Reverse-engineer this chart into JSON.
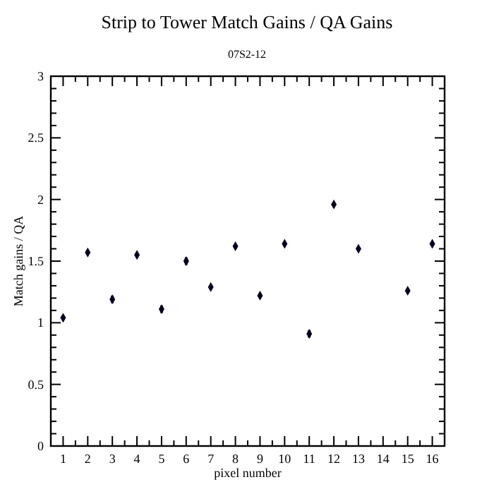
{
  "chart_data": {
    "type": "scatter",
    "title": "Strip to Tower Match Gains / QA Gains",
    "subtitle": "07S2-12",
    "xlabel": "pixel number",
    "ylabel": "Match gains / QA",
    "x": [
      1,
      2,
      3,
      4,
      5,
      6,
      7,
      8,
      9,
      10,
      11,
      12,
      13,
      15,
      16
    ],
    "values": [
      1.04,
      1.57,
      1.19,
      1.55,
      1.11,
      1.5,
      1.29,
      1.62,
      1.22,
      1.64,
      0.91,
      1.96,
      1.6,
      1.26,
      1.64
    ],
    "errors": [
      null,
      null,
      0.03,
      null,
      0.03,
      0.03,
      null,
      null,
      null,
      null,
      0.03,
      null,
      null,
      null,
      null
    ],
    "color": "#000022",
    "marker": "diamond",
    "xlim": [
      0.5,
      16.5
    ],
    "xticks": [
      1,
      2,
      3,
      4,
      5,
      6,
      7,
      8,
      9,
      10,
      11,
      12,
      13,
      14,
      15,
      16
    ],
    "ylim": [
      0,
      3
    ],
    "yticks": [
      0,
      0.5,
      1,
      1.5,
      2,
      2.5,
      3
    ],
    "grid": false
  }
}
